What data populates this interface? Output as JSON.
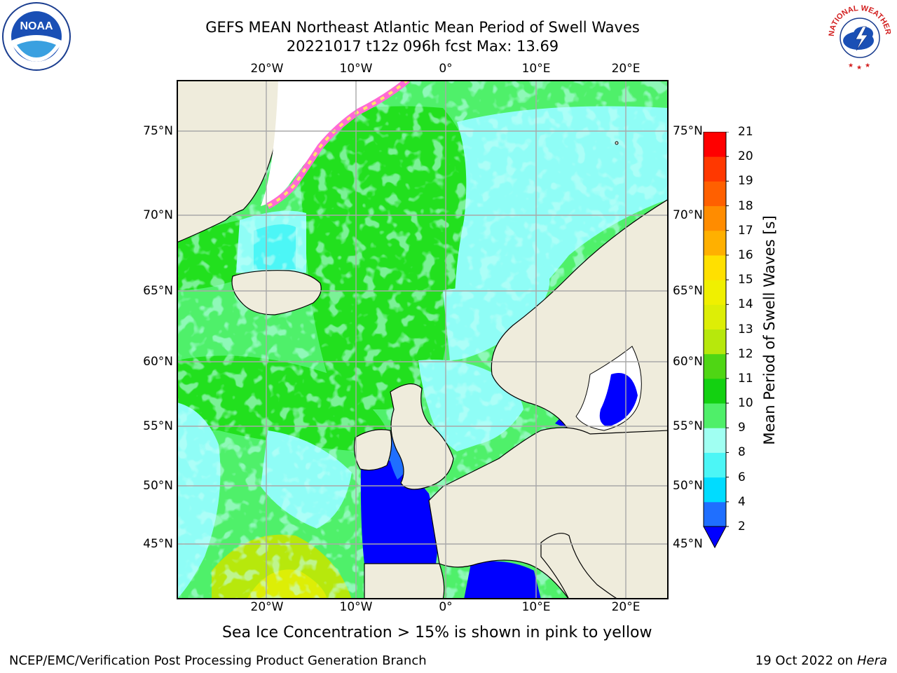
{
  "title": {
    "line1": "GEFS MEAN Northeast Atlantic Mean Period of Swell Waves",
    "line2": "20221017 t12z 096h fcst   Max: 13.69"
  },
  "map": {
    "lon_ticks": [
      "20°W",
      "10°W",
      "0°",
      "10°E",
      "20°E"
    ],
    "lat_ticks": [
      "75°N",
      "70°N",
      "65°N",
      "60°N",
      "55°N",
      "50°N",
      "45°N"
    ],
    "land_color": "#efecdc",
    "ocean_colors": {
      "green": "#22e01e",
      "light_green": "#4ff06a",
      "pale_cyan": "#8ffdf6",
      "cyan": "#31f7f7",
      "blue": "#0000ff"
    }
  },
  "colorbar": {
    "label": "Mean Period of Swell Waves [s]",
    "levels": [
      "2",
      "4",
      "6",
      "8",
      "9",
      "10",
      "11",
      "12",
      "13",
      "14",
      "15",
      "16",
      "17",
      "18",
      "19",
      "20",
      "21"
    ],
    "colors": [
      "#1f6fff",
      "#00dcff",
      "#4cf6f6",
      "#a0fff2",
      "#4fef69",
      "#13d111",
      "#4fd614",
      "#b7e80c",
      "#ddee06",
      "#f0f000",
      "#ffe000",
      "#ffb000",
      "#ff8c00",
      "#ff6000",
      "#ff3800",
      "#ff0000"
    ],
    "under_color": "#0000ff"
  },
  "caption": "Sea Ice Concentration > 15% is shown in pink to yellow",
  "footer": {
    "left": "NCEP/EMC/Verification Post Processing Product Generation Branch",
    "right_date": "19 Oct 2022 on ",
    "right_host": "Hera"
  },
  "logos": {
    "left": "NOAA",
    "right_arc": "NATIONAL WEATHER SERVICE"
  }
}
